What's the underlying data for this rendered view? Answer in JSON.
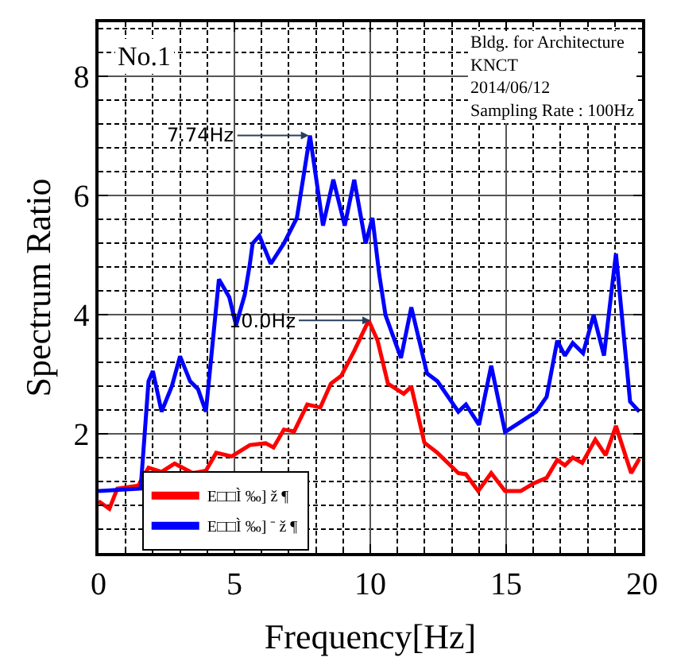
{
  "chart_data": {
    "type": "line",
    "xlabel": "Frequency[Hz]",
    "ylabel": "Spectrum Ratio",
    "xlim": [
      0,
      20
    ],
    "xticks": [
      0,
      5,
      10,
      15,
      20
    ],
    "ylim": [
      0,
      8.9
    ],
    "yticks": [
      2,
      4,
      6,
      8
    ],
    "grid": true,
    "legend": "bottom left",
    "marker": "none",
    "line_style": "solid",
    "series": [
      {
        "name": "E□□Ì ‰] ž ¶",
        "color": "#ff0000",
        "x": [
          0,
          0.4,
          0.69,
          1.46,
          1.84,
          2.32,
          2.8,
          3.47,
          3.95,
          4.33,
          4.9,
          5.57,
          6.15,
          6.44,
          6.82,
          7.2,
          7.68,
          8.16,
          8.55,
          8.93,
          9.41,
          9.94,
          10.27,
          10.65,
          11.23,
          11.51,
          11.99,
          12.47,
          13.24,
          13.52,
          13.97,
          14.45,
          14.96,
          15.54,
          16.02,
          16.49,
          16.88,
          17.16,
          17.45,
          17.8,
          18.28,
          18.66,
          19.04,
          19.6,
          19.9
        ],
        "values": [
          0.87,
          0.74,
          1.08,
          1.13,
          1.43,
          1.36,
          1.5,
          1.34,
          1.38,
          1.68,
          1.62,
          1.81,
          1.84,
          1.77,
          2.07,
          2.04,
          2.49,
          2.44,
          2.84,
          2.97,
          3.39,
          3.9,
          3.56,
          2.84,
          2.67,
          2.79,
          1.85,
          1.68,
          1.34,
          1.32,
          1.04,
          1.34,
          1.04,
          1.04,
          1.17,
          1.26,
          1.56,
          1.47,
          1.6,
          1.51,
          1.9,
          1.64,
          2.13,
          1.34,
          1.58
        ]
      },
      {
        "name": "E□□Ì ‰] ⁻ ž ¶",
        "color": "#0000ff",
        "x": [
          0,
          1.55,
          1.84,
          2.0,
          2.32,
          2.7,
          3.0,
          3.37,
          3.66,
          3.95,
          4.43,
          4.81,
          5.06,
          5.38,
          5.57,
          5.67,
          5.92,
          6.34,
          6.82,
          7.3,
          7.78,
          8.26,
          8.64,
          9.06,
          9.41,
          9.83,
          10.08,
          10.33,
          10.56,
          11.13,
          11.51,
          12.09,
          12.47,
          13.24,
          13.52,
          14.0,
          14.45,
          14.96,
          15.54,
          16.11,
          16.49,
          16.88,
          17.16,
          17.45,
          17.83,
          18.22,
          18.6,
          19.04,
          19.56,
          19.9
        ],
        "values": [
          1.04,
          1.08,
          2.88,
          3.05,
          2.37,
          2.8,
          3.3,
          2.88,
          2.75,
          2.37,
          4.59,
          4.29,
          3.82,
          4.33,
          4.85,
          5.19,
          5.32,
          4.85,
          5.19,
          5.62,
          7.0,
          5.49,
          6.26,
          5.49,
          6.26,
          5.19,
          5.62,
          4.67,
          3.99,
          3.27,
          4.12,
          3.01,
          2.88,
          2.37,
          2.49,
          2.15,
          3.14,
          2.03,
          2.2,
          2.37,
          2.62,
          3.56,
          3.31,
          3.52,
          3.35,
          3.99,
          3.31,
          5.02,
          2.54,
          2.37
        ]
      }
    ],
    "annotations": [
      "No.1",
      "Bldg. for Architecture\nKNCT\n2014/06/12\nSampling Rate : 100Hz",
      {
        "text": "7.74Hz",
        "x": 7.74,
        "y": 7.0
      },
      {
        "text": "10.0Hz",
        "x": 10.0,
        "y": 3.9
      }
    ]
  }
}
